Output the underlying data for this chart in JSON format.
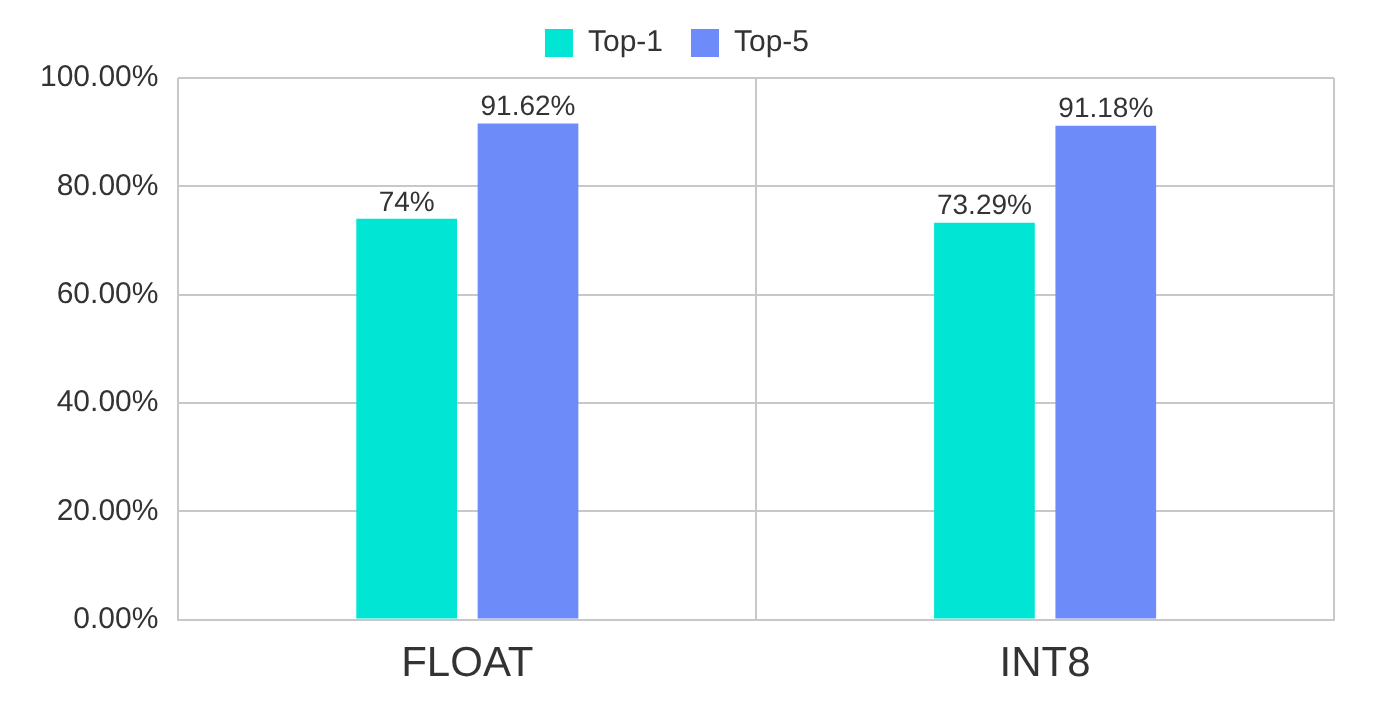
{
  "chart_data": {
    "type": "bar",
    "categories": [
      "FLOAT",
      "INT8"
    ],
    "series": [
      {
        "name": "Top-1",
        "color": "#00e5d4",
        "values": [
          74,
          73.29
        ],
        "value_labels": [
          "74%",
          "73.29%"
        ]
      },
      {
        "name": "Top-5",
        "color": "#6e8bfa",
        "values": [
          91.62,
          91.18
        ],
        "value_labels": [
          "91.62%",
          "91.18%"
        ]
      }
    ],
    "ylim": [
      0,
      100
    ],
    "yticks": [
      {
        "value": 0,
        "label": "0.00%"
      },
      {
        "value": 20,
        "label": "20.00%"
      },
      {
        "value": 40,
        "label": "40.00%"
      },
      {
        "value": 60,
        "label": "60.00%"
      },
      {
        "value": 80,
        "label": "80.00%"
      },
      {
        "value": 100,
        "label": "100.00%"
      }
    ],
    "grid": true,
    "legend": "top"
  }
}
